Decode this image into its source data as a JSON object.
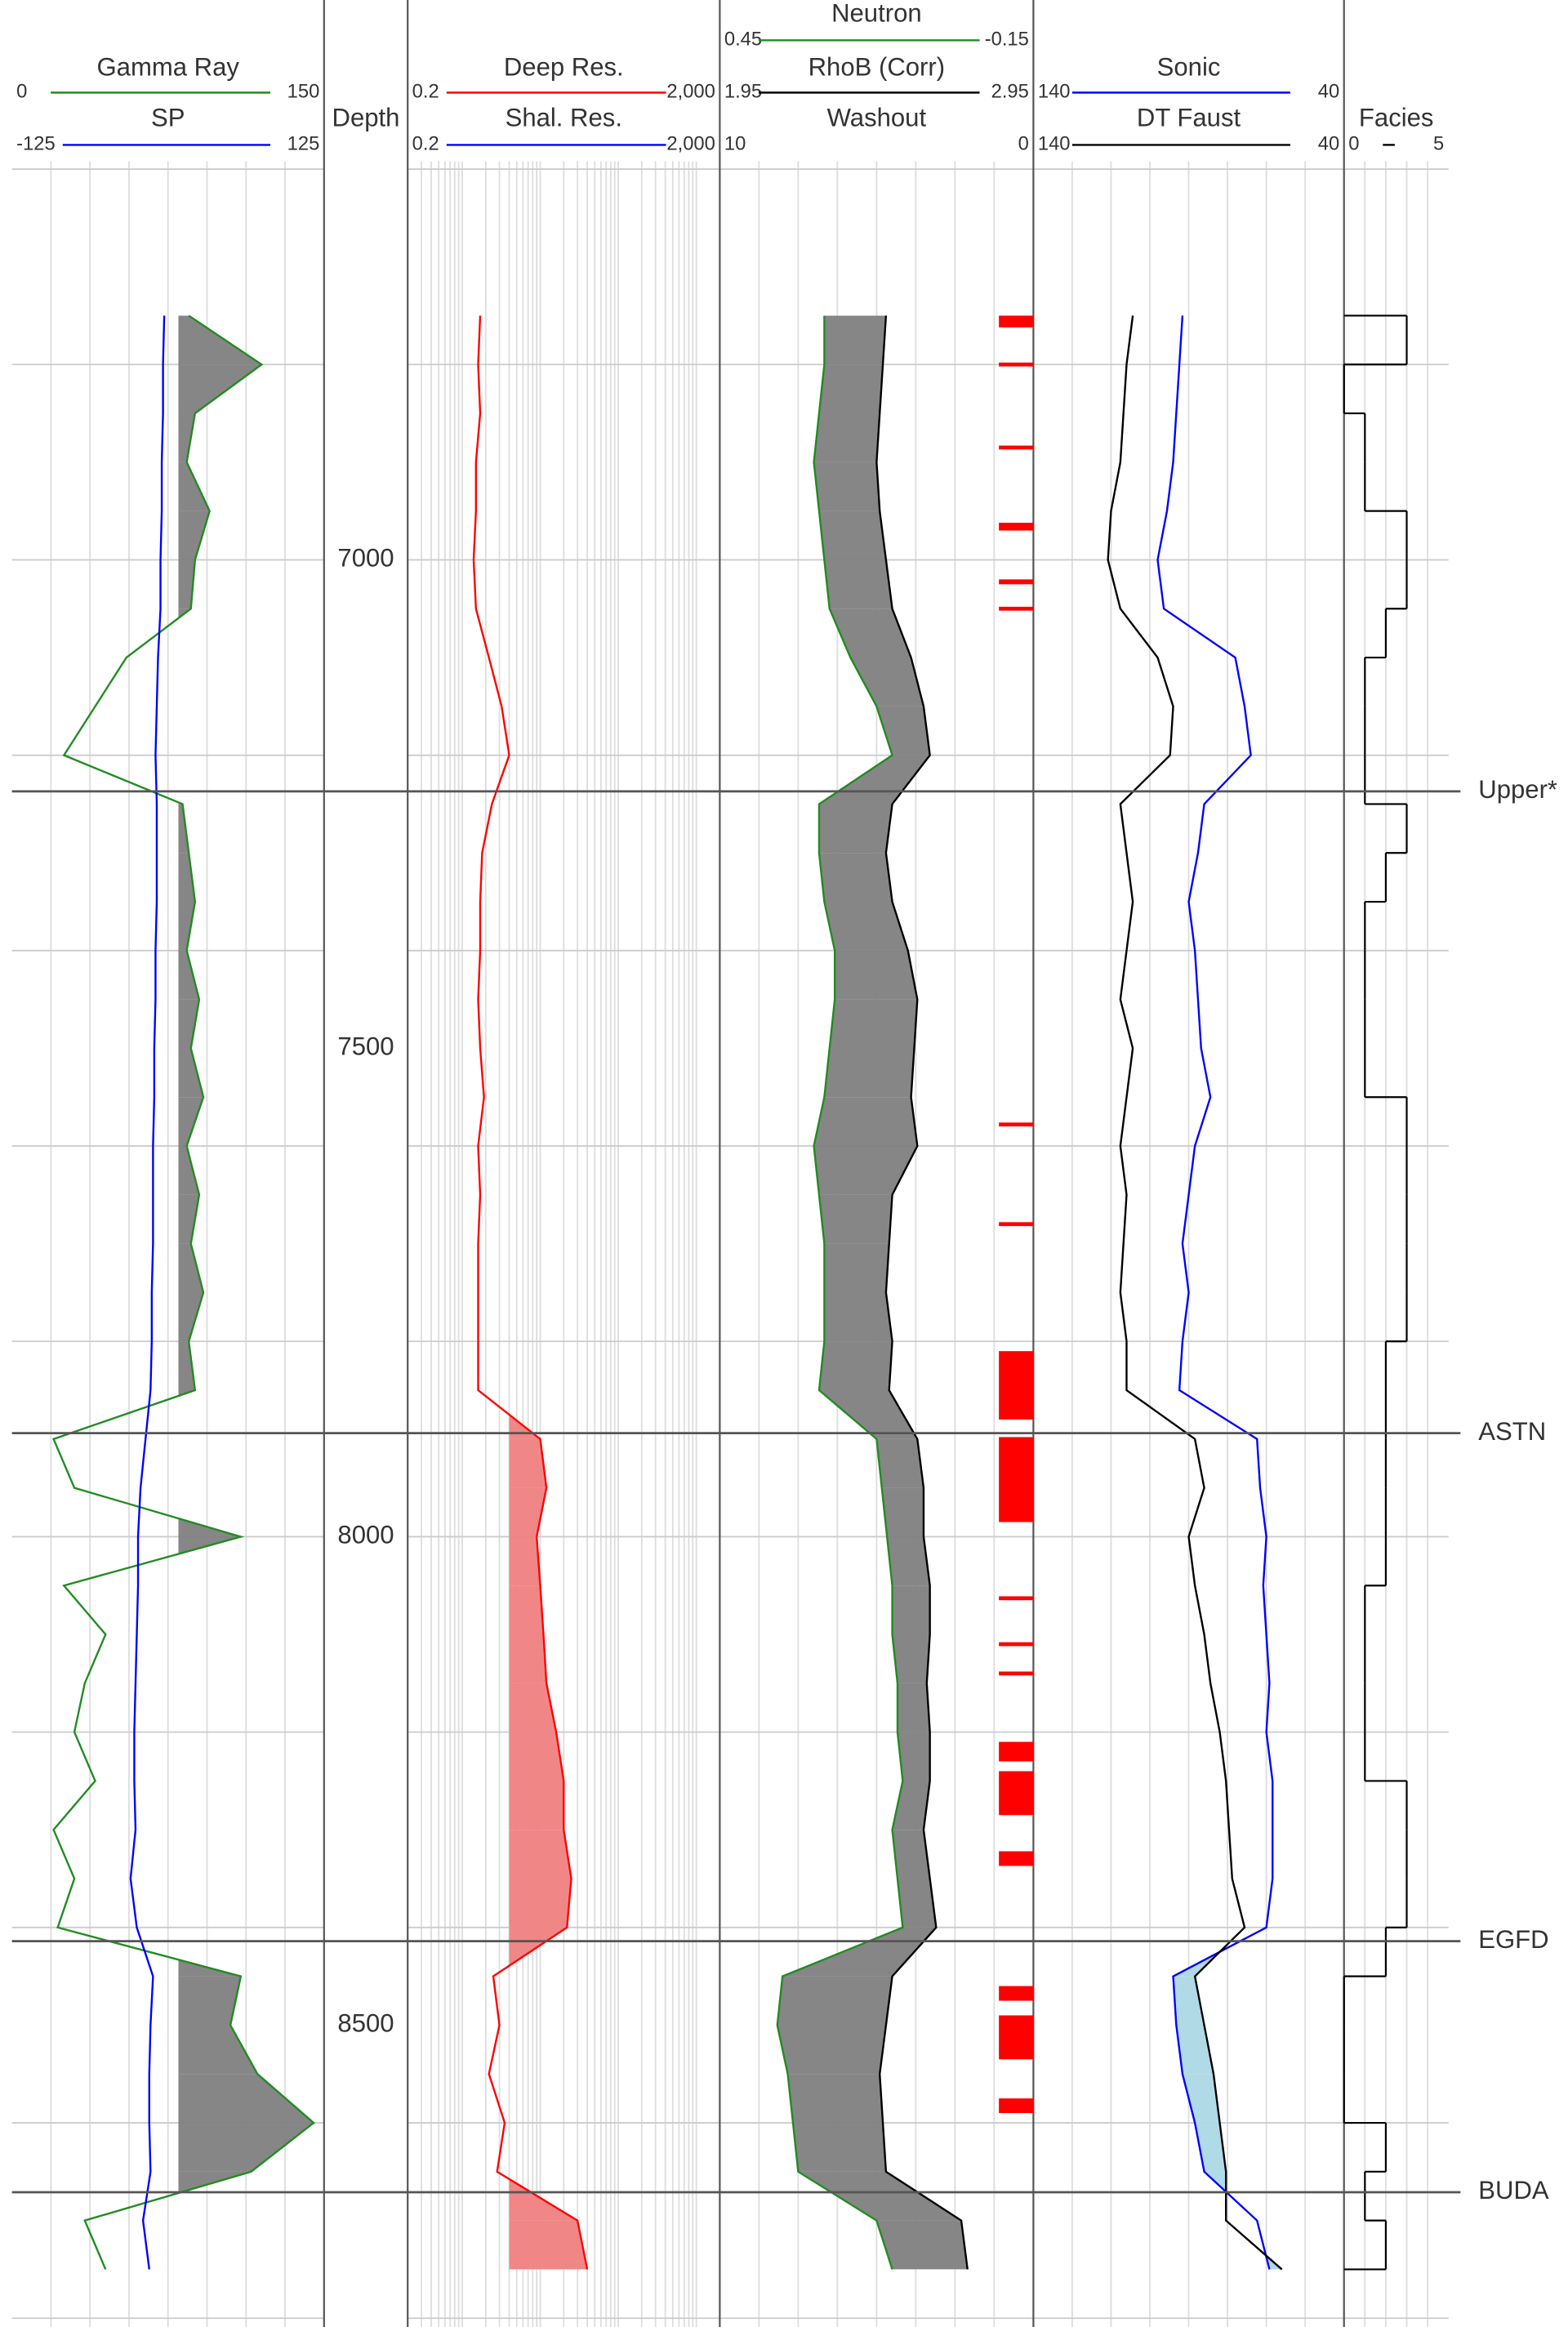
{
  "chart_data": {
    "type": "well_log",
    "depth_label": "Depth",
    "ylim": [
      6592,
      8809
    ],
    "yticks": [
      7000,
      7500,
      8000,
      8500
    ],
    "ygrid": [
      6600,
      6800,
      7000,
      7200,
      7400,
      7600,
      7800,
      8000,
      8200,
      8400,
      8600,
      8800
    ],
    "depth": [
      6750,
      6800,
      6850,
      6900,
      6950,
      7000,
      7050,
      7100,
      7150,
      7200,
      7250,
      7300,
      7350,
      7400,
      7450,
      7500,
      7550,
      7600,
      7650,
      7700,
      7750,
      7800,
      7850,
      7900,
      7950,
      8000,
      8050,
      8100,
      8150,
      8200,
      8250,
      8300,
      8350,
      8400,
      8450,
      8500,
      8550,
      8600,
      8650,
      8700,
      8750
    ],
    "tops": [
      {
        "name": "Upper*",
        "depth": 7237
      },
      {
        "name": "ASTN",
        "depth": 7894
      },
      {
        "name": "EGFD",
        "depth": 8414
      },
      {
        "name": "BUDA",
        "depth": 8671
      }
    ],
    "curves": [
      {
        "name": "Gamma Ray",
        "color": "#228b22",
        "xlim": [
          0,
          150
        ],
        "xticks": [
          0,
          150
        ],
        "fill": {
          "color": "#808080",
          "cutoff": 80
        },
        "values": [
          85,
          120,
          88,
          84,
          95,
          88,
          86,
          55,
          40,
          25,
          82,
          85,
          88,
          84,
          90,
          86,
          92,
          84,
          90,
          86,
          92,
          85,
          88,
          20,
          30,
          110,
          25,
          45,
          35,
          30,
          40,
          20,
          30,
          22,
          110,
          105,
          118,
          145,
          115,
          35,
          45
        ]
      },
      {
        "name": "SP",
        "color": "#0000ff",
        "xlim": [
          -125,
          125
        ],
        "xticks": [
          -125,
          125
        ],
        "values": [
          -3,
          -4,
          -4,
          -5,
          -5,
          -6,
          -6,
          -8,
          -9,
          -10,
          -9,
          -9,
          -9,
          -10,
          -10,
          -11,
          -11,
          -12,
          -12,
          -12,
          -13,
          -13,
          -14,
          -18,
          -22,
          -24,
          -24,
          -25,
          -26,
          -27,
          -27,
          -26,
          -30,
          -25,
          -12,
          -14,
          -15,
          -15,
          -14,
          -20,
          -15
        ]
      },
      {
        "name": "Deep Res.",
        "color": "#ff0000",
        "scale": "log",
        "xlim": [
          0.2,
          2000
        ],
        "xticks": [
          0.2,
          {
            "value": 2000,
            "label": "2,000"
          }
        ],
        "fill": {
          "color": "#f08080",
          "cutoff": 4
        },
        "values": [
          1.7,
          1.6,
          1.7,
          1.5,
          1.5,
          1.4,
          1.5,
          2.2,
          3.2,
          4.0,
          2.4,
          1.8,
          1.7,
          1.7,
          1.6,
          1.7,
          1.9,
          1.6,
          1.7,
          1.6,
          1.6,
          1.6,
          1.6,
          10,
          12,
          9,
          10,
          11,
          12,
          16,
          20,
          20,
          25,
          22,
          2.5,
          3.0,
          2.2,
          3.5,
          2.8,
          30,
          40
        ]
      },
      {
        "name": "Shal. Res.",
        "color": "#0000ff",
        "scale": "log",
        "xlim": [
          0.2,
          2000
        ],
        "xticks": [
          0.2,
          {
            "value": 2000,
            "label": "2,000"
          }
        ]
      },
      {
        "name": "Neutron",
        "color": "#228b22",
        "xlim": [
          0.45,
          -0.15
        ],
        "xticks": [
          0.45,
          -0.15
        ],
        "fill": {
          "color": "#808080"
        },
        "values": [
          0.25,
          0.25,
          0.26,
          0.27,
          0.26,
          0.25,
          0.24,
          0.2,
          0.15,
          0.12,
          0.26,
          0.26,
          0.25,
          0.23,
          0.23,
          0.24,
          0.25,
          0.27,
          0.26,
          0.25,
          0.25,
          0.25,
          0.26,
          0.15,
          0.14,
          0.13,
          0.12,
          0.12,
          0.11,
          0.11,
          0.1,
          0.12,
          0.11,
          0.1,
          0.33,
          0.34,
          0.32,
          0.31,
          0.3,
          0.15,
          0.12
        ]
      },
      {
        "name": "RhoB (Corr)",
        "color": "#000000",
        "xlim": [
          1.95,
          2.95
        ],
        "xticks": [
          1.95,
          2.95
        ],
        "values": [
          2.48,
          2.47,
          2.46,
          2.45,
          2.46,
          2.48,
          2.5,
          2.56,
          2.6,
          2.62,
          2.5,
          2.48,
          2.5,
          2.55,
          2.58,
          2.57,
          2.56,
          2.58,
          2.5,
          2.49,
          2.48,
          2.5,
          2.49,
          2.58,
          2.6,
          2.6,
          2.62,
          2.62,
          2.61,
          2.62,
          2.62,
          2.6,
          2.62,
          2.64,
          2.5,
          2.48,
          2.46,
          2.47,
          2.48,
          2.72,
          2.74
        ]
      },
      {
        "name": "Sonic",
        "color": "#0000ff",
        "xlim": [
          140,
          40
        ],
        "xticks": [
          140,
          40
        ],
        "fill": {
          "color": "#add8e6"
        },
        "values": [
          92,
          93,
          94,
          95,
          97,
          100,
          98,
          75,
          72,
          70,
          85,
          87,
          90,
          88,
          87,
          86,
          83,
          88,
          90,
          92,
          90,
          92,
          93,
          68,
          67,
          65,
          66,
          65,
          64,
          65,
          63,
          63,
          63,
          65,
          95,
          94,
          92,
          88,
          85,
          68,
          64
        ]
      },
      {
        "name": "DT Faust",
        "color": "#000000",
        "xlim": [
          140,
          40
        ],
        "xticks": [
          140,
          40
        ],
        "values": [
          108,
          110,
          111,
          112,
          115,
          116,
          112,
          100,
          95,
          96,
          112,
          110,
          108,
          110,
          112,
          108,
          110,
          112,
          110,
          111,
          112,
          110,
          110,
          88,
          85,
          90,
          88,
          85,
          83,
          80,
          78,
          77,
          76,
          72,
          88,
          85,
          82,
          80,
          78,
          78,
          60
        ]
      },
      {
        "name": "Facies",
        "color": "#000000",
        "step": true,
        "xlim": [
          0,
          5
        ],
        "xticks": [
          0,
          5
        ],
        "values": [
          3,
          0,
          1,
          1,
          3,
          3,
          2,
          1,
          1,
          1,
          3,
          2,
          1,
          1,
          1,
          1,
          3,
          3,
          3,
          3,
          3,
          2,
          2,
          2,
          2,
          2,
          1,
          1,
          1,
          1,
          3,
          3,
          3,
          2,
          0,
          0,
          0,
          2,
          1,
          2,
          4
        ]
      }
    ],
    "washout": {
      "name": "Washout",
      "color": "#ff0000",
      "xlim": [
        10,
        0
      ],
      "xticks": [
        10,
        0
      ],
      "intervals": [
        {
          "top": 6750,
          "base": 6762,
          "value": 1.1
        },
        {
          "top": 6798,
          "base": 6802,
          "value": 1.1
        },
        {
          "top": 6883,
          "base": 6887,
          "value": 1.1
        },
        {
          "top": 6962,
          "base": 6970,
          "value": 1.1
        },
        {
          "top": 7020,
          "base": 7025,
          "value": 1.1
        },
        {
          "top": 7048,
          "base": 7052,
          "value": 1.1
        },
        {
          "top": 7576,
          "base": 7580,
          "value": 1.1
        },
        {
          "top": 7678,
          "base": 7682,
          "value": 1.1
        },
        {
          "top": 7810,
          "base": 7880,
          "value": 1.1
        },
        {
          "top": 7898,
          "base": 7985,
          "value": 1.1
        },
        {
          "top": 8061,
          "base": 8065,
          "value": 1.1
        },
        {
          "top": 8108,
          "base": 8112,
          "value": 1.1
        },
        {
          "top": 8138,
          "base": 8142,
          "value": 1.1
        },
        {
          "top": 8210,
          "base": 8230,
          "value": 1.1
        },
        {
          "top": 8240,
          "base": 8285,
          "value": 1.1
        },
        {
          "top": 8322,
          "base": 8337,
          "value": 1.1
        },
        {
          "top": 8460,
          "base": 8475,
          "value": 1.1
        },
        {
          "top": 8490,
          "base": 8535,
          "value": 1.1
        },
        {
          "top": 8575,
          "base": 8590,
          "value": 1.1
        }
      ]
    }
  }
}
